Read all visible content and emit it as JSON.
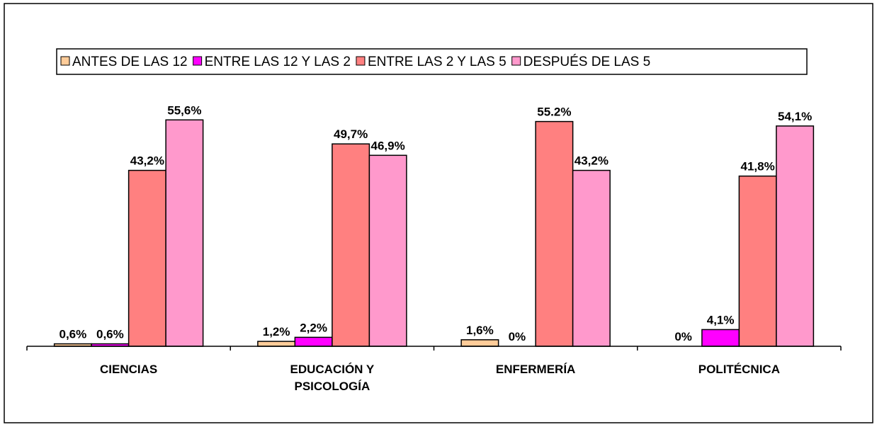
{
  "chart_data": {
    "type": "bar",
    "categories": [
      "CIENCIAS",
      "EDUCACIÓN Y PSICOLOGÍA",
      "ENFERMERÍA",
      "POLITÉCNICA"
    ],
    "series": [
      {
        "name": "ANTES DE LAS 12",
        "color": "#ffcc99",
        "values": [
          0.6,
          1.2,
          1.6,
          0
        ],
        "value_labels": [
          "0,6%",
          "1,2%",
          "1,6%",
          "0%"
        ]
      },
      {
        "name": "ENTRE LAS 12 Y LAS 2",
        "color": "#ff00ff",
        "values": [
          0.6,
          2.2,
          0,
          4.1
        ],
        "value_labels": [
          "0,6%",
          "2,2%",
          "0%",
          "4,1%"
        ]
      },
      {
        "name": "ENTRE LAS 2 Y LAS 5",
        "color": "#ff8080",
        "values": [
          43.2,
          49.7,
          55.2,
          41.8
        ],
        "value_labels": [
          "43,2%",
          "49,7%",
          "55.2%",
          "41,8%"
        ]
      },
      {
        "name": "DESPUÉS DE LAS 5",
        "color": "#ff99cc",
        "values": [
          55.6,
          46.9,
          43.2,
          54.1
        ],
        "value_labels": [
          "55,6%",
          "46,9%",
          "43,2%",
          "54,1%"
        ]
      }
    ],
    "ylim": [
      0,
      60
    ],
    "legend": "top"
  }
}
